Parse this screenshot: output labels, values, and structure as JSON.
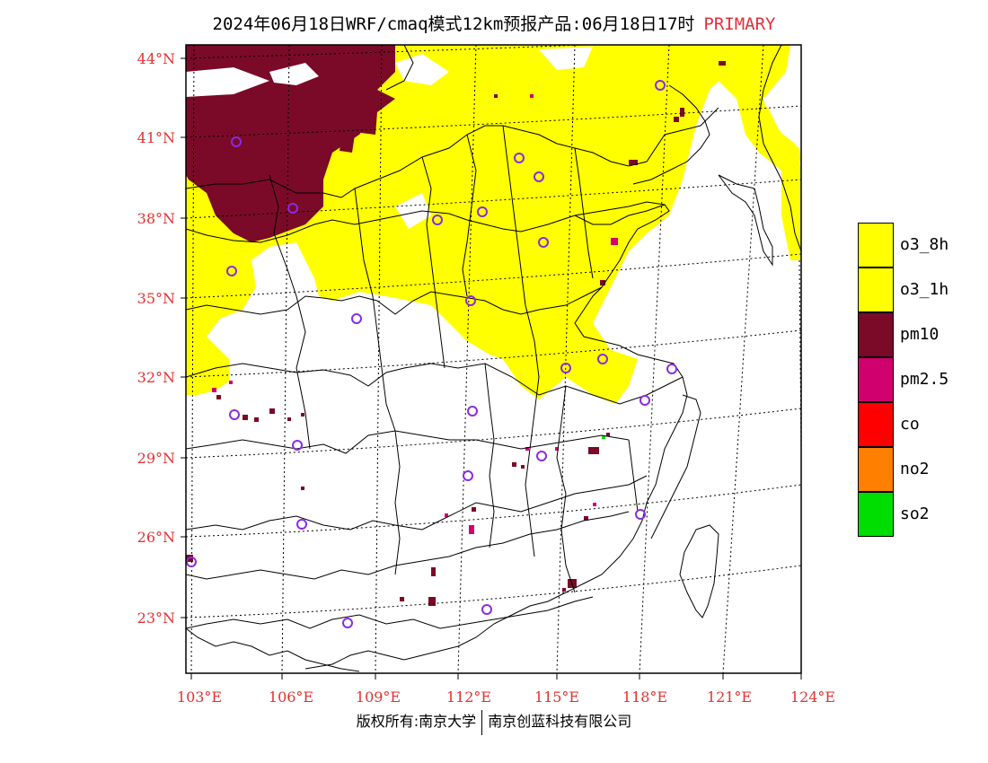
{
  "header": {
    "title": "2024年06月18日WRF/cmaq模式12km预报产品:06月18日17时",
    "mode_label": "PRIMARY"
  },
  "map": {
    "lat_labels": [
      "44°N",
      "41°N",
      "38°N",
      "35°N",
      "32°N",
      "29°N",
      "26°N",
      "23°N"
    ],
    "lon_labels": [
      "103°E",
      "106°E",
      "109°E",
      "112°E",
      "115°E",
      "118°E",
      "121°E",
      "124°E"
    ]
  },
  "legend": {
    "items": [
      {
        "label": "o3_8h",
        "color": "#ffff00"
      },
      {
        "label": "o3_1h",
        "color": "#ffff00"
      },
      {
        "label": "pm10",
        "color": "#7a0a28"
      },
      {
        "label": "pm2.5",
        "color": "#d1006f"
      },
      {
        "label": "co",
        "color": "#ff0000"
      },
      {
        "label": "no2",
        "color": "#ff7f00"
      },
      {
        "label": "so2",
        "color": "#00dd00"
      }
    ]
  },
  "footer": {
    "left": "版权所有:南京大学",
    "right": "南京创蓝科技有限公司"
  }
}
